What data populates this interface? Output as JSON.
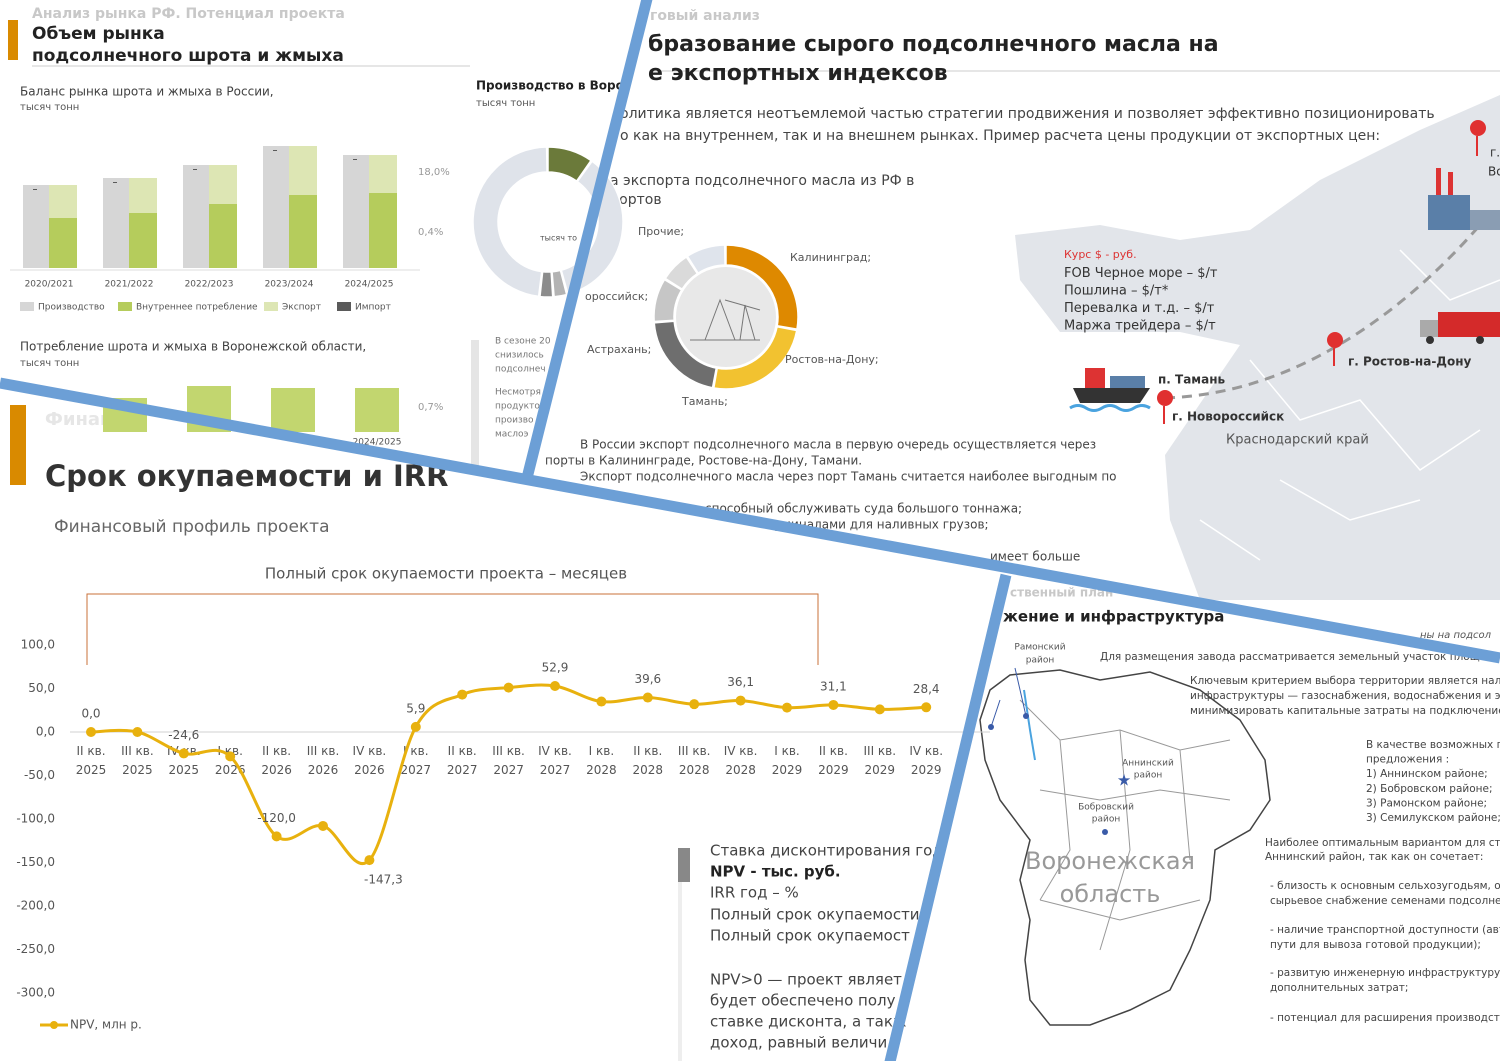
{
  "slide_market": {
    "kicker": "Анализ рынка РФ. Потенциал проекта",
    "title_lines": [
      "Объем рынка",
      "подсолнечного шрота и жмыха"
    ],
    "balance_title": "Баланс рынка шрота и жмыха в России,",
    "balance_unit": "тысяч тонн",
    "balance_notes": [
      "18,0%",
      "0,4%"
    ],
    "consumption_title": "Потребление шрота и жмыха в Воронежской области,",
    "consumption_unit": "тысяч тонн",
    "consumption_note": "0,7%",
    "production_title": "Производство в Воро",
    "production_unit": "тысяч тонн",
    "production_center": "тысяч то",
    "side_lines": [
      "В сезоне 20",
      "снизилось",
      "подсолнеч",
      "Несмотря",
      "продукто",
      "произво",
      "маслоэ"
    ]
  },
  "slide_export": {
    "kicker": "говый анализ",
    "title_lines": [
      "бразование сырого подсолнечного масла на",
      "е экспортных индексов"
    ],
    "intro_lines": [
      "олитика является неотъемлемой частью стратегии продвижения и позволяет эффективно позиционировать",
      "о как на внутреннем, так и на внешнем рынках. Пример расчета цены продукции  от экспортных цен:"
    ],
    "donut_title_lines": [
      "а экспорта подсолнечного масла из РФ в",
      "портов"
    ],
    "body_lines": [
      "В России экспорт подсолнечного масла в первую очередь осуществляется через",
      "порты в Калининграде, Ростове-на-Дону, Тамани.",
      "Экспорт подсолнечного масла через порт Тамань считается наиболее выгодным по",
      "способный обслуживать суда большого тоннажа;",
      "терминалами для наливных грузов;",
      "имеет  больше"
    ],
    "price_lines": [
      "Курс $ - руб.",
      "FOB Черное море –     $/т",
      "Пошлина –   $/т*",
      "Перевалка и т.д. –   $/т",
      "Маржа трейдера –   $/т"
    ],
    "cities": [
      "п. Тамань",
      "г. Новороссийск",
      "г. Ростов-на-Дону",
      "г.",
      "Во"
    ],
    "region": "Краснодарский край"
  },
  "slide_map": {
    "kicker": "ственный план",
    "title": "жение и инфраструктура",
    "corner_note": "ны на подсол",
    "districts": [
      "Рамонский",
      "район",
      "Аннинский",
      "район",
      "Бобровский",
      "район"
    ],
    "region_lines": [
      "Воронежская",
      "область"
    ],
    "lines_a": [
      "Для размещения завода рассматривается земельный участок площ"
    ],
    "lines_b": [
      "Ключевым критерием выбора территории является налич",
      "инфраструктуры — газоснабжения, водоснабжения и элек",
      "минимизировать капитальные затраты на подключение и"
    ],
    "lines_c": [
      "В качестве возможных пл",
      "предложения :",
      "1) Аннинском районе;",
      "2) Бобровском районе;",
      "3) Рамонском  районе;",
      "3) Семилукском районе;"
    ],
    "lines_d": [
      "Наиболее оптимальным вариантом для стро",
      "Аннинский район, так как он сочетает:"
    ],
    "lines_e": [
      "- близость к основным сельхозугодьям, обе",
      "сырьевое снабжение семенами подсолнеч",
      "- наличие транспортной доступности (авто",
      "пути для вывоза готовой продукции);",
      "- развитую инженерную инфраструктуру, ч",
      "дополнительных затрат;",
      "- потенциал для расширения производства"
    ]
  },
  "slide_finance": {
    "kicker": "Финансо",
    "title": "Срок окупаемости и IRR",
    "subtitle": "Финансовый профиль проекта",
    "box_lines": [
      "Ставка дисконтирования год",
      "NPV -   тыс. руб.",
      "IRR год –   %",
      "Полный срок окупаемости",
      "Полный срок окупаемост",
      "NPV>0 — проект являет",
      "будет обеспечено полу",
      "ставке дисконта, а такж",
      "доход, равный величи"
    ]
  },
  "chart_data": [
    {
      "type": "line",
      "title": "Полный срок окупаемости проекта –  месяцев",
      "categories": [
        "II кв. 2025",
        "III кв. 2025",
        "IV кв. 2025",
        "I кв. 2026",
        "II кв. 2026",
        "III кв. 2026",
        "IV кв. 2026",
        "I кв. 2027",
        "II кв. 2027",
        "III кв. 2027",
        "IV кв. 2027",
        "I кв. 2028",
        "II кв. 2028",
        "III кв. 2028",
        "IV кв. 2028",
        "I кв. 2029",
        "II кв. 2029",
        "III кв. 2029",
        "IV кв. 2029"
      ],
      "series": [
        {
          "name": "NPV, млн р.",
          "color": "#e8b10e",
          "values": [
            0.0,
            0.0,
            -24.6,
            -28,
            -120.0,
            -108,
            -147.3,
            5.9,
            43,
            51,
            52.9,
            35,
            39.6,
            32,
            36.1,
            28,
            31.1,
            26,
            28.4
          ],
          "value_labels": [
            "0,0",
            null,
            "-24,6",
            null,
            "-120,0",
            null,
            "-147,3",
            "5,9",
            null,
            null,
            "52,9",
            null,
            "39,6",
            null,
            "36,1",
            null,
            "31,1",
            null,
            "28,4"
          ]
        }
      ],
      "ylim": [
        -300,
        100
      ],
      "yticks": [
        {
          "value": 100,
          "label": "100,0"
        },
        {
          "value": 50,
          "label": "50,0"
        },
        {
          "value": 0,
          "label": "0,0"
        },
        {
          "value": -50,
          "label": "-50,0"
        },
        {
          "value": -100,
          "label": "-100,0"
        },
        {
          "value": -150,
          "label": "-150,0"
        },
        {
          "value": -200,
          "label": "-200,0"
        },
        {
          "value": -250,
          "label": "-250,0"
        },
        {
          "value": -300,
          "label": "-300,0"
        }
      ],
      "grid": false
    },
    {
      "type": "bar",
      "categories": [
        "2020/2021",
        "2021/2022",
        "2022/2023",
        "2023/2024",
        "2024/2025"
      ],
      "ylim": [
        0,
        7000
      ],
      "series": [
        {
          "name": "Производство",
          "color": "#d6d6d6",
          "values": [
            4150,
            4500,
            5150,
            6100,
            5650
          ]
        },
        {
          "name": "Внутреннее потребление",
          "color": "#b5cc5c",
          "values": [
            2500,
            2750,
            3200,
            3650,
            3750
          ]
        },
        {
          "name": "Экспорт",
          "color": "#dde6b4",
          "values": [
            1650,
            1750,
            1950,
            2450,
            1900
          ]
        },
        {
          "name": "Импорт",
          "color": "#5a5a5a",
          "values": [
            50,
            50,
            50,
            50,
            50
          ]
        }
      ]
    },
    {
      "type": "bar",
      "categories": [
        null,
        null,
        null,
        "2024/2025"
      ],
      "values": [
        340,
        460,
        440,
        440
      ],
      "color": "#c2d66f",
      "ylim": [
        0,
        1000
      ]
    },
    {
      "type": "pie",
      "categories": [
        null,
        null,
        null,
        null,
        null
      ],
      "values": [
        10,
        36,
        3,
        3,
        48
      ],
      "colors": [
        "#6b7a3a",
        "#dfe3ea",
        "#b3b3b3",
        "#8c8c8c",
        "#dfe3ea"
      ]
    },
    {
      "type": "pie",
      "categories": [
        "Калининград;",
        "Ростов-на-Дону;",
        "Тамань;",
        "Астрахань;",
        "ороссийск;",
        "Прочие;"
      ],
      "values": [
        28,
        25,
        21,
        10,
        7,
        9
      ],
      "colors": [
        "#de8900",
        "#f2c230",
        "#6e6e6e",
        "#c6c6c6",
        "#dadada",
        "#dfe4ec"
      ]
    }
  ]
}
